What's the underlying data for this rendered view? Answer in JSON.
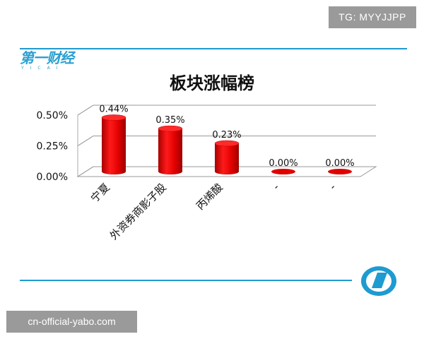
{
  "watermark_top": "TG: MYYJJPP",
  "watermark_bottom": "cn-official-yabo.com",
  "brand": {
    "name": "第一财经",
    "sub": "YICAI"
  },
  "colors": {
    "accent": "#1e9bd0",
    "bar": "#e00000",
    "bar_dark": "#a00000"
  },
  "chart_data": {
    "type": "bar",
    "title": "板块涨幅榜",
    "categories": [
      "宁夏",
      "外资券商影子股",
      "丙烯酸",
      "-",
      "-"
    ],
    "values": [
      0.44,
      0.35,
      0.23,
      0.0,
      0.0
    ],
    "value_labels": [
      "0.44%",
      "0.35%",
      "0.23%",
      "0.00%",
      "0.00%"
    ],
    "ylim": [
      0,
      0.5
    ],
    "yticks": [
      0,
      0.25,
      0.5
    ],
    "ytick_labels": [
      "0.00%",
      "0.25%",
      "0.50%"
    ],
    "grid": true,
    "style": "3d-cylinder"
  }
}
